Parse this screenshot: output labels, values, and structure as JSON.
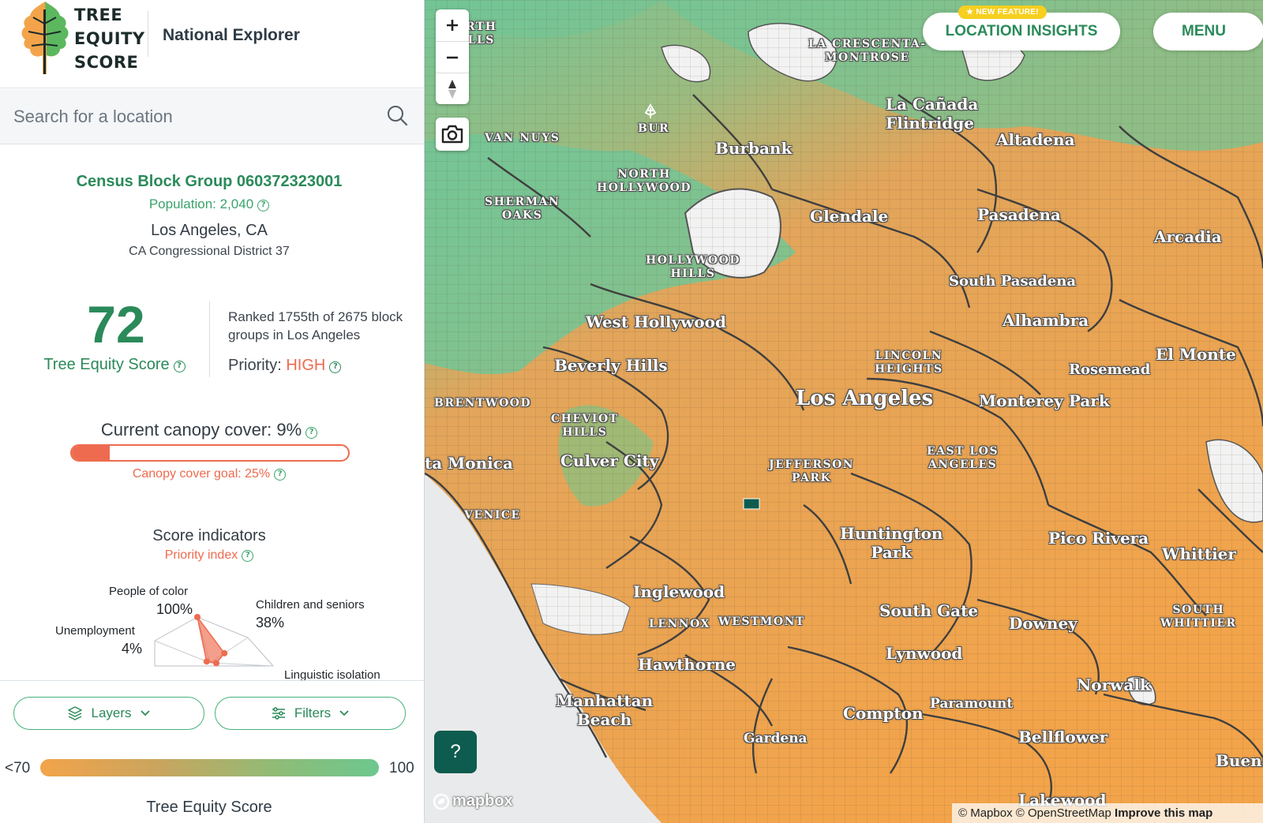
{
  "brand": {
    "logo_lines": [
      "TREE",
      "EQUITY",
      "SCORE"
    ],
    "subtitle": "National Explorer"
  },
  "search": {
    "placeholder": "Search for a location"
  },
  "block_group": {
    "title": "Census Block Group 060372323001",
    "population": "Population: 2,040",
    "city": "Los Angeles, CA",
    "district": "CA Congressional District 37"
  },
  "score": {
    "value": "72",
    "label": "Tree Equity Score",
    "rank_text": "Ranked 1755th of 2675 block groups in Los Angeles",
    "priority_label": "Priority:",
    "priority_value": "HIGH"
  },
  "canopy": {
    "title": "Current canopy cover: 9%",
    "current_percent": 9,
    "goal_percent": 25,
    "goal": "Canopy cover goal: 25%"
  },
  "indicators": {
    "title": "Score indicators",
    "subtitle": "Priority index",
    "items": [
      {
        "label": "People of color",
        "value": "100%",
        "fraction": 1.0
      },
      {
        "label": "Children and seniors",
        "value": "38%",
        "fraction": 0.38
      },
      {
        "label": "Linguistic isolation",
        "value": "",
        "fraction": 0.1
      },
      {
        "label": "Unemployment",
        "value": "4%",
        "fraction": 0.04
      }
    ]
  },
  "controls": {
    "layers": "Layers",
    "filters": "Filters"
  },
  "legend": {
    "min": "<70",
    "max": "100",
    "title": "Tree Equity Score"
  },
  "map": {
    "insights_badge": "★ NEW FEATURE!",
    "insights": "LOCATION INSIGHTS",
    "menu": "MENU",
    "help": "?",
    "mapbox": "mapbox",
    "attribution": "© Mapbox © OpenStreetMap",
    "attribution_link": "Improve this map",
    "colors": {
      "low": "#f3a44a",
      "mid": "#b2aa6a",
      "high": "#72c596",
      "boundary": "#3f3f3f"
    },
    "places": {
      "north_hills": "RTH\nLLS",
      "la_crescenta": "LA CRESCENTA-\nMONTROSE",
      "la_canada": "La Cañada\nFlintridge",
      "altadena": "Altadena",
      "bur": "BUR",
      "burbank": "Burbank",
      "van_nuys": "VAN NUYS",
      "north_hollywood": "NORTH\nHOLLYWOOD",
      "sherman_oaks": "SHERMAN\nOAKS",
      "glendale": "Glendale",
      "pasadena": "Pasadena",
      "arcadia": "Arcadia",
      "hollywood_hills": "HOLLYWOOD\nHILLS",
      "south_pasadena": "South Pasadena",
      "west_hollywood": "West Hollywood",
      "alhambra": "Alhambra",
      "lincoln_heights": "LINCOLN\nHEIGHTS",
      "el_monte": "El Monte",
      "beverly_hills": "Beverly Hills",
      "rosemead": "Rosemead",
      "brentwood": "BRENTWOOD",
      "los_angeles": "Los Angeles",
      "monterey_park": "Monterey Park",
      "cheviot_hills": "CHEVIOT\nHILLS",
      "santa_monica": "ta Monica",
      "culver_city": "Culver City",
      "east_la": "EAST LOS\nANGELES",
      "jefferson_park": "JEFFERSON\nPARK",
      "venice": "VENICE",
      "huntington_park": "Huntington\nPark",
      "pico_rivera": "Pico Rivera",
      "whittier": "Whittier",
      "inglewood": "Inglewood",
      "lennox": "LENNOX",
      "westmont": "WESTMONT",
      "south_gate": "South Gate",
      "downey": "Downey",
      "south_whittier": "SOUTH\nWHITTIER",
      "lynwood": "Lynwood",
      "hawthorne": "Hawthorne",
      "norwalk": "Norwalk",
      "manhattan_beach": "Manhattan\nBeach",
      "compton": "Compton",
      "paramount": "Paramount",
      "gardena": "Gardena",
      "bellflower": "Bellflower",
      "buena": "Buena",
      "lakewood": "Lakewood"
    }
  }
}
